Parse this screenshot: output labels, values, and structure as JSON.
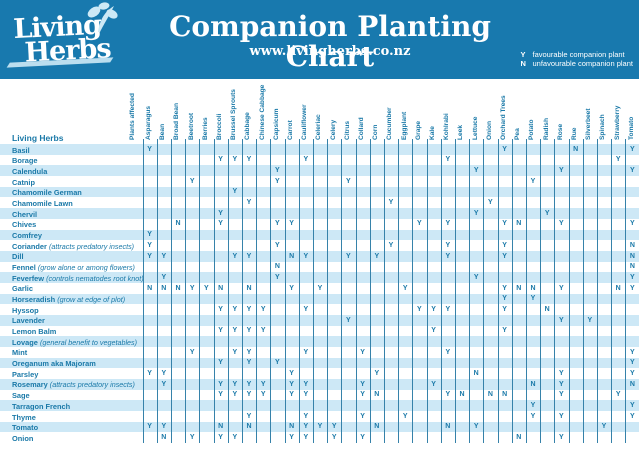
{
  "header": {
    "logo_line1": "Living",
    "logo_line2": "Herbs",
    "title": "Companion Planting Chart",
    "website": "www.livingherbs.co.nz",
    "legend": [
      {
        "symbol": "Y",
        "text": "favourable companion plant"
      },
      {
        "symbol": "N",
        "text": "unfavourable companion plant"
      }
    ]
  },
  "colors": {
    "band": "#1879AE",
    "stripe": "#CDE8F6",
    "ink": "#1A79A8",
    "grid": "#3682AA",
    "logo_leaf": "#CDE9F6"
  },
  "chart_data": {
    "type": "table",
    "title": "Companion Planting Chart",
    "corner_label": "Living Herbs",
    "column_group_label": "Plants affected",
    "legend": {
      "Y": "favourable companion plant",
      "N": "unfavourable companion plant"
    },
    "columns": [
      "Asparagus",
      "Bean",
      "Broad Bean",
      "Beetroot",
      "Berries",
      "Broccoli",
      "Brussel Sprouts",
      "Cabbage",
      "Chinese Cabbage",
      "Capsicum",
      "Carrot",
      "Cauliflower",
      "Celeriac",
      "Celery",
      "Citrus",
      "Collard",
      "Corn",
      "Cucumber",
      "Eggplant",
      "Grape",
      "Kale",
      "Kohlrabi",
      "Leek",
      "Lettuce",
      "Onion",
      "Orchard Trees",
      "Pea",
      "Potato",
      "Radish",
      "Rose",
      "Rue",
      "Silverbeet",
      "Spinach",
      "Strawberry",
      "Tomato"
    ],
    "rows": [
      {
        "label": "Basil",
        "note": "",
        "cells": {
          "Asparagus": "Y",
          "Orchard Trees": "Y",
          "Rue": "N",
          "Tomato": "Y"
        }
      },
      {
        "label": "Borage",
        "note": "",
        "cells": {
          "Broccoli": "Y",
          "Brussel Sprouts": "Y",
          "Cabbage": "Y",
          "Cauliflower": "Y",
          "Kohlrabi": "Y",
          "Strawberry": "Y"
        }
      },
      {
        "label": "Calendula",
        "note": "",
        "cells": {
          "Capsicum": "Y",
          "Lettuce": "Y",
          "Rose": "Y",
          "Tomato": "Y"
        }
      },
      {
        "label": "Catnip",
        "note": "",
        "cells": {
          "Beetroot": "Y",
          "Capsicum": "Y",
          "Citrus": "Y",
          "Potato": "Y"
        }
      },
      {
        "label": "Chamomile German",
        "note": "",
        "cells": {
          "Brussel Sprouts": "Y"
        }
      },
      {
        "label": "Chamomile Lawn",
        "note": "",
        "cells": {
          "Cabbage": "Y",
          "Cucumber": "Y",
          "Onion": "Y"
        }
      },
      {
        "label": "Chervil",
        "note": "",
        "cells": {
          "Broccoli": "Y",
          "Lettuce": "Y",
          "Radish": "Y"
        }
      },
      {
        "label": "Chives",
        "note": "",
        "cells": {
          "Broad Bean": "N",
          "Broccoli": "Y",
          "Capsicum": "Y",
          "Carrot": "Y",
          "Grape": "Y",
          "Kohlrabi": "Y",
          "Orchard Trees": "Y",
          "Pea": "N",
          "Rose": "Y",
          "Tomato": "Y"
        }
      },
      {
        "label": "Comfrey",
        "note": "",
        "cells": {
          "Asparagus": "Y"
        }
      },
      {
        "label": "Coriander",
        "note": "(attracts predatory insects)",
        "cells": {
          "Asparagus": "Y",
          "Capsicum": "Y",
          "Cucumber": "Y",
          "Kohlrabi": "Y",
          "Orchard Trees": "Y",
          "Tomato": "N"
        }
      },
      {
        "label": "Dill",
        "note": "",
        "cells": {
          "Asparagus": "Y",
          "Bean": "Y",
          "Brussel Sprouts": "Y",
          "Cabbage": "Y",
          "Carrot": "N",
          "Cauliflower": "Y",
          "Citrus": "Y",
          "Corn": "Y",
          "Kohlrabi": "Y",
          "Orchard Trees": "Y",
          "Tomato": "N"
        }
      },
      {
        "label": "Fennel",
        "note": "(grow alone or among flowers)",
        "cells": {
          "Capsicum": "N",
          "Tomato": "N"
        }
      },
      {
        "label": "Feverfew",
        "note": "(controls nematodes root knot)",
        "cells": {
          "Bean": "Y",
          "Capsicum": "Y",
          "Lettuce": "Y",
          "Tomato": "Y"
        }
      },
      {
        "label": "Garlic",
        "note": "",
        "cells": {
          "Asparagus": "N",
          "Bean": "N",
          "Broad Bean": "N",
          "Beetroot": "Y",
          "Berries": "Y",
          "Broccoli": "N",
          "Cabbage": "N",
          "Carrot": "Y",
          "Celeriac": "Y",
          "Eggplant": "Y",
          "Orchard Trees": "Y",
          "Pea": "N",
          "Potato": "N",
          "Rose": "Y",
          "Strawberry": "N",
          "Tomato": "Y"
        }
      },
      {
        "label": "Horseradish",
        "note": "(grow at edge of plot)",
        "cells": {
          "Orchard Trees": "Y",
          "Potato": "Y"
        }
      },
      {
        "label": "Hyssop",
        "note": "",
        "cells": {
          "Broccoli": "Y",
          "Brussel Sprouts": "Y",
          "Cabbage": "Y",
          "Chinese Cabbage": "Y",
          "Cauliflower": "Y",
          "Grape": "Y",
          "Kale": "Y",
          "Kohlrabi": "Y",
          "Orchard Trees": "Y",
          "Radish": "N"
        }
      },
      {
        "label": "Lavender",
        "note": "",
        "cells": {
          "Citrus": "Y",
          "Rose": "Y",
          "Silverbeet": "Y"
        }
      },
      {
        "label": "Lemon Balm",
        "note": "",
        "cells": {
          "Broccoli": "Y",
          "Brussel Sprouts": "Y",
          "Cabbage": "Y",
          "Chinese Cabbage": "Y",
          "Kale": "Y",
          "Orchard Trees": "Y"
        }
      },
      {
        "label": "Lovage",
        "note": "(general benefit to vegetables)",
        "cells": {}
      },
      {
        "label": "Mint",
        "note": "",
        "cells": {
          "Beetroot": "Y",
          "Brussel Sprouts": "Y",
          "Cabbage": "Y",
          "Cauliflower": "Y",
          "Collard": "Y",
          "Kohlrabi": "Y",
          "Tomato": "Y"
        }
      },
      {
        "label": "Oreganum aka Majoram",
        "note": "",
        "cells": {
          "Broccoli": "Y",
          "Cabbage": "Y",
          "Capsicum": "Y",
          "Tomato": "Y"
        }
      },
      {
        "label": "Parsley",
        "note": "",
        "cells": {
          "Asparagus": "Y",
          "Bean": "Y",
          "Carrot": "Y",
          "Corn": "Y",
          "Lettuce": "N",
          "Rose": "Y",
          "Tomato": "Y"
        }
      },
      {
        "label": "Rosemary",
        "note": "(attracts predatory insects)",
        "cells": {
          "Bean": "Y",
          "Broccoli": "Y",
          "Brussel Sprouts": "Y",
          "Cabbage": "Y",
          "Chinese Cabbage": "Y",
          "Carrot": "Y",
          "Cauliflower": "Y",
          "Collard": "Y",
          "Kale": "Y",
          "Potato": "N",
          "Rose": "Y",
          "Tomato": "N"
        }
      },
      {
        "label": "Sage",
        "note": "",
        "cells": {
          "Broccoli": "Y",
          "Brussel Sprouts": "Y",
          "Cabbage": "Y",
          "Chinese Cabbage": "Y",
          "Carrot": "Y",
          "Cauliflower": "Y",
          "Collard": "Y",
          "Corn": "N",
          "Kohlrabi": "Y",
          "Leek": "N",
          "Onion": "N",
          "Orchard Trees": "N",
          "Rose": "Y",
          "Strawberry": "Y"
        }
      },
      {
        "label": "Tarragon French",
        "note": "",
        "cells": {
          "Potato": "Y",
          "Tomato": "Y"
        }
      },
      {
        "label": "Thyme",
        "note": "",
        "cells": {
          "Cabbage": "Y",
          "Cauliflower": "Y",
          "Collard": "Y",
          "Eggplant": "Y",
          "Potato": "Y",
          "Rose": "Y",
          "Tomato": "Y"
        }
      },
      {
        "label": "Tomato",
        "note": "",
        "cells": {
          "Asparagus": "Y",
          "Bean": "Y",
          "Broccoli": "N",
          "Cabbage": "N",
          "Carrot": "N",
          "Cauliflower": "Y",
          "Celeriac": "Y",
          "Celery": "Y",
          "Corn": "N",
          "Kohlrabi": "N",
          "Lettuce": "Y",
          "Spinach": "Y"
        }
      },
      {
        "label": "Onion",
        "note": "",
        "cells": {
          "Bean": "N",
          "Beetroot": "Y",
          "Broccoli": "Y",
          "Brussel Sprouts": "Y",
          "Carrot": "Y",
          "Cauliflower": "Y",
          "Celery": "Y",
          "Collard": "Y",
          "Pea": "N",
          "Rose": "Y"
        }
      }
    ]
  }
}
